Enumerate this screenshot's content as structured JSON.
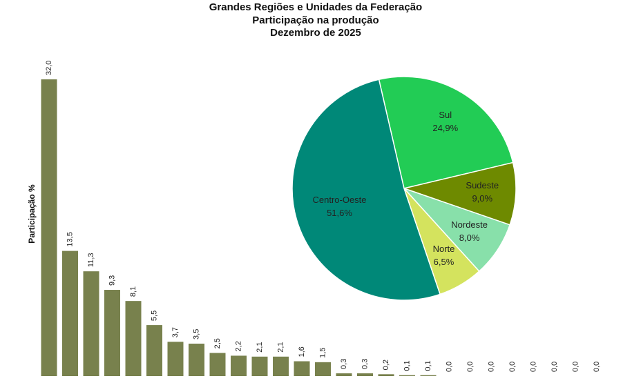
{
  "chart_data": [
    {
      "type": "bar",
      "title": "Grandes Regiões e Unidades da Federação",
      "subtitle": [
        "Participação na produção",
        "Dezembro de 2025"
      ],
      "y_label": "Participação %",
      "color": "#78814d",
      "values": [
        32.0,
        13.5,
        11.3,
        9.3,
        8.1,
        5.5,
        3.7,
        3.5,
        2.5,
        2.2,
        2.1,
        2.1,
        1.6,
        1.5,
        0.3,
        0.3,
        0.2,
        0.1,
        0.1,
        0.0,
        0.0,
        0.0,
        0.0,
        0.0,
        0.0,
        0.0,
        0.0
      ],
      "value_labels": [
        "32,0",
        "13,5",
        "11,3",
        "9,3",
        "8,1",
        "5,5",
        "3,7",
        "3,5",
        "2,5",
        "2,2",
        "2,1",
        "2,1",
        "1,6",
        "1,5",
        "0,3",
        "0,3",
        "0,2",
        "0,1",
        "0,1",
        "0,0",
        "0,0",
        "0,0",
        "0,0",
        "0,0",
        "0,0",
        "0,0",
        "0,0"
      ]
    },
    {
      "type": "pie",
      "categories": [
        "Sul",
        "Sudeste",
        "Nordeste",
        "Norte",
        "Centro-Oeste"
      ],
      "values": [
        24.9,
        9.0,
        8.0,
        6.5,
        51.6
      ],
      "value_labels": [
        "24,9%",
        "9,0%",
        "8,0%",
        "6,5%",
        "51,6%"
      ],
      "colors": [
        "#22cc55",
        "#6e8a00",
        "#88e0aa",
        "#d4e35e",
        "#008878"
      ]
    }
  ]
}
